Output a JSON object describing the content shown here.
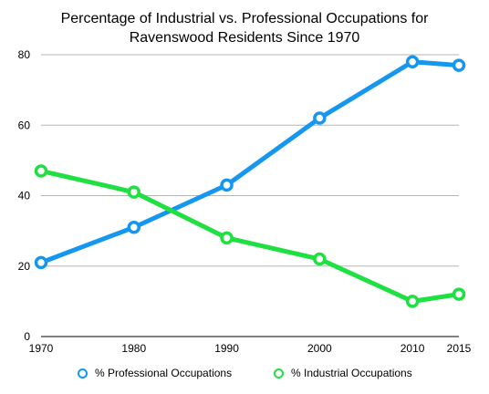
{
  "chart_data": {
    "type": "line",
    "title_lines": [
      "Percentage of Industrial vs. Professional Occupations for",
      "Ravenswood Residents Since 1970"
    ],
    "x": [
      1970,
      1980,
      1990,
      2000,
      2010,
      2015
    ],
    "x_tick_labels": [
      "1970",
      "1980",
      "1990",
      "2000",
      "2010",
      "2015"
    ],
    "y_ticks": [
      0,
      20,
      40,
      60,
      80
    ],
    "ylim": [
      0,
      80
    ],
    "grid": true,
    "legend_position": "bottom",
    "series": [
      {
        "name": "% Professional Occupations",
        "color": "#1597f0",
        "values": [
          21,
          31,
          43,
          62,
          78,
          77
        ]
      },
      {
        "name": "% Industrial Occupations",
        "color": "#1ee040",
        "values": [
          47,
          41,
          28,
          22,
          10,
          12
        ]
      }
    ]
  }
}
